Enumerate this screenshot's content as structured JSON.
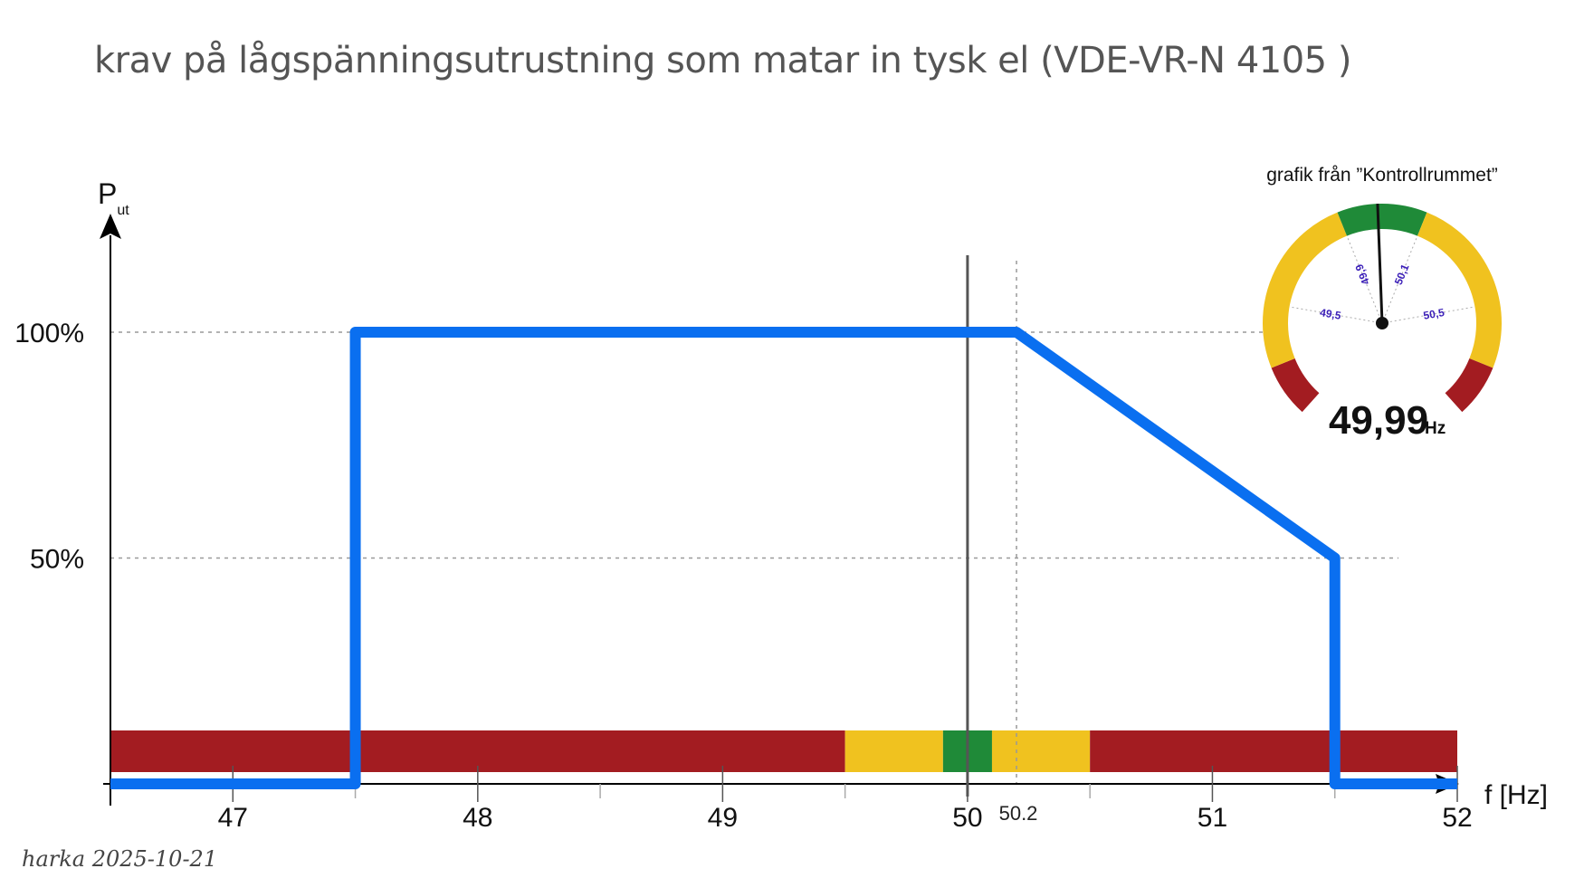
{
  "title": "krav på lågspänningsutrustning som matar in tysk el (VDE-VR-N 4105 )",
  "footer": "harka 2025-10-21",
  "colors": {
    "curve": "#0a6ff0",
    "red": "#a31c21",
    "yellow": "#f0c21f",
    "green": "#1f8a38",
    "axis": "#000000",
    "grid": "#999999",
    "gauge_label": "#3b1fb8"
  },
  "chart_data": {
    "type": "line",
    "title": "krav på lågspänningsutrustning som matar in tysk el (VDE-VR-N 4105 )",
    "xlabel": "f [Hz]",
    "ylabel": "P",
    "ylabel_sub": "ut",
    "xlim": [
      46.5,
      52
    ],
    "ylim": [
      0,
      100
    ],
    "x_ticks": [
      47,
      48,
      49,
      50,
      51,
      52
    ],
    "x_tick_labels": [
      "47",
      "48",
      "49",
      "50",
      "51",
      "52"
    ],
    "x_minor_ticks": [
      47.5,
      48.5,
      49.5,
      50.5,
      51.5
    ],
    "extra_x_label": {
      "x": 50.2,
      "label": "50.2"
    },
    "y_ticks": [
      50,
      100
    ],
    "y_tick_labels": [
      "50%",
      "100%"
    ],
    "grid": "dashed at 50%, 100% and 50.2 Hz",
    "series": [
      {
        "x": [
          46.5,
          47.5,
          47.5,
          50.2,
          51.5,
          51.5,
          52
        ],
        "y": [
          0,
          0,
          100,
          100,
          50,
          0,
          0
        ]
      }
    ],
    "reference_line": {
      "x": 50
    },
    "bands": [
      {
        "from": 46.5,
        "to": 49.5,
        "color": "red"
      },
      {
        "from": 49.5,
        "to": 49.9,
        "color": "yellow"
      },
      {
        "from": 49.9,
        "to": 50.1,
        "color": "green"
      },
      {
        "from": 50.1,
        "to": 50.5,
        "color": "yellow"
      },
      {
        "from": 50.5,
        "to": 52,
        "color": "red"
      }
    ]
  },
  "gauge": {
    "caption": "grafik från ”Kontrollrummet”",
    "value": 49.99,
    "value_label": "49,99",
    "unit": "Hz",
    "tick_labels": [
      {
        "value": 49.5,
        "label": "49,5"
      },
      {
        "value": 49.9,
        "label": "49,9"
      },
      {
        "value": 50.1,
        "label": "50,1"
      },
      {
        "value": 50.5,
        "label": "50,5"
      }
    ]
  }
}
